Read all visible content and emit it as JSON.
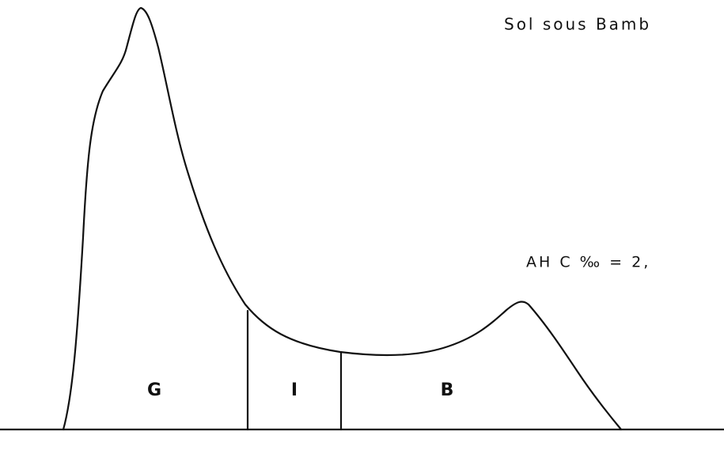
{
  "title": "Sol sous Bamb",
  "annotation": "AH  C ‰ = 2,",
  "zones": [
    "G",
    "I",
    "B"
  ]
}
